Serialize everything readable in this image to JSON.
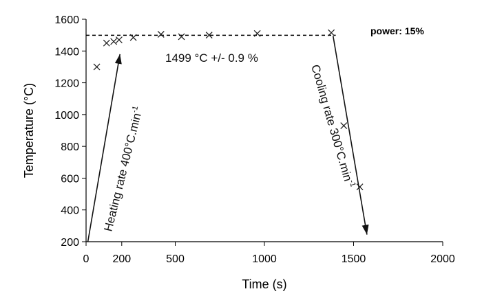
{
  "chart_data": {
    "type": "scatter",
    "title": "",
    "xlabel": "Time (s)",
    "ylabel": "Temperature (°C)",
    "xlim": [
      0,
      2000
    ],
    "ylim": [
      200,
      1600
    ],
    "xticks": [
      0,
      200,
      500,
      1000,
      1500,
      2000
    ],
    "yticks": [
      200,
      400,
      600,
      800,
      1000,
      1200,
      1400,
      1600
    ],
    "grid": false,
    "series": [
      {
        "marker": "x",
        "x": [
          60,
          115,
          155,
          185,
          265,
          420,
          535,
          690,
          960,
          1375,
          1445,
          1535
        ],
        "y": [
          1300,
          1450,
          1460,
          1470,
          1485,
          1505,
          1490,
          1500,
          1510,
          1515,
          930,
          545
        ]
      }
    ],
    "reference_line": {
      "y": 1499,
      "x_start": 0,
      "x_end": 1400,
      "style": "dashed"
    },
    "arrows": [
      {
        "from": [
          10,
          200
        ],
        "to": [
          190,
          1380
        ]
      },
      {
        "from": [
          1385,
          1495
        ],
        "to": [
          1575,
          245
        ]
      }
    ],
    "annotations": {
      "mean_label": "1499 °C +/- 0.9 %",
      "heating_label": "Heating rate 400°C.min",
      "heating_sup": "-1",
      "cooling_label": "Cooling rate 300°C.min",
      "cooling_sup": "-1",
      "power_label": "power: 15%"
    }
  }
}
